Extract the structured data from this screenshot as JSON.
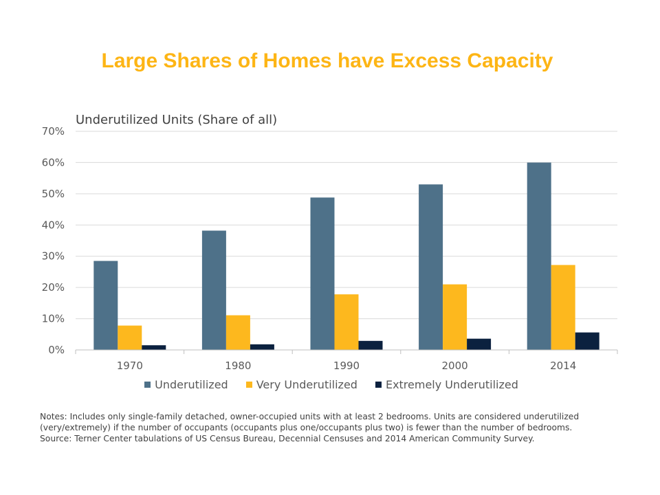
{
  "title": "Large Shares of Homes have Excess Capacity",
  "notes": {
    "text": "Notes: Includes only single-family  detached, owner-occupied units with at least 2 bedrooms.  Units are considered underutilized  (very/extremely)  if the number  of occupants (occupants plus one/occupants plus two) is fewer than the number  of bedrooms.",
    "source": "Source: Terner Center tabulations of US Census Bureau, Decennial Censuses and 2014 American Community  Survey."
  },
  "chart_data": {
    "type": "bar",
    "title": "Underutilized Units (Share of all)",
    "categories": [
      "1970",
      "1980",
      "1990",
      "2000",
      "2014"
    ],
    "series": [
      {
        "name": "Underutilized",
        "color": "#4e7189",
        "values": [
          28.5,
          38.2,
          48.8,
          53.0,
          60.0
        ]
      },
      {
        "name": "Very Underutilized",
        "color": "#fdb81e",
        "values": [
          7.8,
          11.1,
          17.8,
          21.0,
          27.2
        ]
      },
      {
        "name": "Extremely Underutilized",
        "color": "#0b213f",
        "values": [
          1.5,
          1.8,
          2.9,
          3.6,
          5.6
        ]
      }
    ],
    "yticks": [
      "0%",
      "10%",
      "20%",
      "30%",
      "40%",
      "50%",
      "60%",
      "70%"
    ],
    "ylim": [
      0,
      70
    ],
    "grid": true,
    "legend_position": "bottom"
  }
}
